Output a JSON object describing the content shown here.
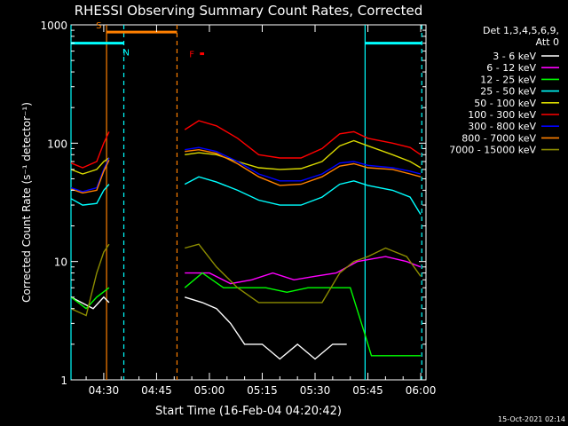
{
  "chart_data": {
    "type": "line",
    "title": "RHESSI Observing Summary Count Rates, Corrected",
    "xlabel": "Start Time (16-Feb-04 04:20:42)",
    "ylabel": "Corrected Count Rate (s⁻¹ detector⁻¹)",
    "x_ticks": [
      "04:30",
      "04:45",
      "05:00",
      "05:15",
      "05:30",
      "05:45",
      "06:00"
    ],
    "x_tick_minutes": [
      30,
      45,
      60,
      75,
      90,
      105,
      120
    ],
    "xlim_minutes": [
      20.7,
      121.5
    ],
    "y_ticks": [
      "1",
      "10",
      "100",
      "1000"
    ],
    "y_tick_values": [
      1,
      10,
      100,
      1000
    ],
    "ylim": [
      1,
      1000
    ],
    "y_scale": "log",
    "legend_header": [
      "Det 1,3,4,5,6,9,",
      "Att 0"
    ],
    "series": [
      {
        "name": "3 - 6 keV",
        "color": "#ffffff",
        "segments": [
          [
            [
              20.7,
              5
            ],
            [
              27,
              4
            ],
            [
              30,
              5
            ],
            [
              31.5,
              4.5
            ]
          ],
          [
            [
              53,
              5
            ],
            [
              58,
              4.5
            ],
            [
              62,
              4
            ],
            [
              66,
              3
            ],
            [
              70,
              2
            ],
            [
              75,
              2
            ],
            [
              80,
              1.5
            ],
            [
              85,
              2
            ],
            [
              90,
              1.5
            ],
            [
              95,
              2
            ],
            [
              99,
              2
            ]
          ]
        ]
      },
      {
        "name": "6 - 12 keV",
        "color": "#ff00ff",
        "segments": [
          [
            [
              53,
              8
            ],
            [
              60,
              8
            ],
            [
              66,
              6.5
            ],
            [
              72,
              7
            ],
            [
              78,
              8
            ],
            [
              84,
              7
            ],
            [
              90,
              7.5
            ],
            [
              96,
              8
            ],
            [
              102,
              10
            ],
            [
              110,
              11
            ],
            [
              116,
              10
            ],
            [
              120,
              9
            ]
          ]
        ]
      },
      {
        "name": "12 - 25 keV",
        "color": "#00ff00",
        "segments": [
          [
            [
              20.7,
              5
            ],
            [
              25,
              4
            ],
            [
              28,
              5
            ],
            [
              31.5,
              6
            ]
          ],
          [
            [
              53,
              6
            ],
            [
              58,
              8
            ],
            [
              64,
              6
            ],
            [
              70,
              6
            ],
            [
              76,
              6
            ],
            [
              82,
              5.5
            ],
            [
              88,
              6
            ],
            [
              94,
              6
            ],
            [
              100,
              6
            ],
            [
              104,
              2.5
            ],
            [
              106,
              1.6
            ],
            [
              120,
              1.6
            ]
          ]
        ]
      },
      {
        "name": "25 - 50 keV",
        "color": "#00ffff",
        "segments": [
          [
            [
              20.7,
              34
            ],
            [
              24,
              30
            ],
            [
              28,
              31
            ],
            [
              30,
              40
            ],
            [
              31.5,
              45
            ]
          ],
          [
            [
              53,
              45
            ],
            [
              57,
              52
            ],
            [
              62,
              47
            ],
            [
              68,
              40
            ],
            [
              74,
              33
            ],
            [
              80,
              30
            ],
            [
              86,
              30
            ],
            [
              92,
              35
            ],
            [
              97,
              45
            ],
            [
              101,
              48
            ],
            [
              105,
              44
            ],
            [
              112,
              40
            ],
            [
              117,
              35
            ],
            [
              120,
              25
            ]
          ]
        ]
      },
      {
        "name": "50 - 100 keV",
        "color": "#d8d800",
        "segments": [
          [
            [
              20.7,
              60
            ],
            [
              24,
              55
            ],
            [
              28,
              60
            ],
            [
              30,
              70
            ],
            [
              31.5,
              75
            ]
          ],
          [
            [
              53,
              80
            ],
            [
              57,
              83
            ],
            [
              62,
              80
            ],
            [
              68,
              70
            ],
            [
              74,
              62
            ],
            [
              80,
              60
            ],
            [
              86,
              61
            ],
            [
              92,
              70
            ],
            [
              97,
              95
            ],
            [
              101,
              105
            ],
            [
              105,
              95
            ],
            [
              112,
              80
            ],
            [
              117,
              70
            ],
            [
              120,
              62
            ]
          ]
        ]
      },
      {
        "name": "100 - 300 keV",
        "color": "#ff0000",
        "segments": [
          [
            [
              20.7,
              68
            ],
            [
              24,
              62
            ],
            [
              28,
              70
            ],
            [
              30,
              100
            ],
            [
              31.5,
              125
            ]
          ],
          [
            [
              53,
              130
            ],
            [
              57,
              155
            ],
            [
              62,
              140
            ],
            [
              68,
              110
            ],
            [
              74,
              80
            ],
            [
              80,
              75
            ],
            [
              86,
              75
            ],
            [
              92,
              90
            ],
            [
              97,
              120
            ],
            [
              101,
              125
            ],
            [
              105,
              110
            ],
            [
              112,
              100
            ],
            [
              117,
              92
            ],
            [
              120,
              80
            ]
          ]
        ]
      },
      {
        "name": "300 - 800 keV",
        "color": "#0000ff",
        "segments": [
          [
            [
              20.7,
              42
            ],
            [
              24,
              39
            ],
            [
              28,
              42
            ],
            [
              30,
              60
            ],
            [
              31.5,
              75
            ]
          ],
          [
            [
              53,
              88
            ],
            [
              57,
              92
            ],
            [
              62,
              85
            ],
            [
              68,
              70
            ],
            [
              74,
              55
            ],
            [
              80,
              48
            ],
            [
              86,
              48
            ],
            [
              92,
              55
            ],
            [
              97,
              68
            ],
            [
              101,
              70
            ],
            [
              105,
              65
            ],
            [
              112,
              62
            ],
            [
              117,
              58
            ],
            [
              120,
              55
            ]
          ]
        ]
      },
      {
        "name": "800 - 7000 keV",
        "color": "#ff8000",
        "segments": [
          [
            [
              20.7,
              41
            ],
            [
              24,
              38
            ],
            [
              28,
              40
            ],
            [
              30,
              58
            ],
            [
              31.5,
              72
            ]
          ],
          [
            [
              53,
              85
            ],
            [
              57,
              88
            ],
            [
              62,
              82
            ],
            [
              68,
              67
            ],
            [
              74,
              52
            ],
            [
              80,
              44
            ],
            [
              86,
              45
            ],
            [
              92,
              52
            ],
            [
              97,
              64
            ],
            [
              101,
              67
            ],
            [
              105,
              62
            ],
            [
              112,
              60
            ],
            [
              117,
              55
            ],
            [
              120,
              52
            ]
          ]
        ]
      },
      {
        "name": "7000 - 15000 keV",
        "color": "#8c8c00",
        "segments": [
          [
            [
              20.7,
              4
            ],
            [
              25,
              3.5
            ],
            [
              28,
              8
            ],
            [
              30,
              12
            ],
            [
              31.5,
              14
            ]
          ],
          [
            [
              53,
              13
            ],
            [
              57,
              14
            ],
            [
              62,
              9
            ],
            [
              68,
              6
            ],
            [
              74,
              4.5
            ],
            [
              80,
              4.5
            ],
            [
              86,
              4.5
            ],
            [
              92,
              4.5
            ],
            [
              97,
              8
            ],
            [
              101,
              10
            ],
            [
              105,
              11
            ],
            [
              110,
              13
            ],
            [
              116,
              11
            ],
            [
              120,
              7.5
            ]
          ]
        ]
      }
    ],
    "flag_bars": [
      {
        "label": "S",
        "color": "#ff8000",
        "x": [
          30.8,
          50.8
        ],
        "level": 870
      },
      {
        "label": "N",
        "color": "#00ffff",
        "x": [
          20.7,
          35.7
        ],
        "level": 700
      },
      {
        "label": "",
        "color": "#00ffff",
        "x": [
          104.2,
          120.3
        ],
        "level": 700
      },
      {
        "label": "F",
        "color": "#ff0000",
        "x": [
          57.3,
          58.5
        ],
        "level": 570
      }
    ],
    "vlines": [
      {
        "x": 20.7,
        "color": "#00ffff",
        "style": "solid"
      },
      {
        "x": 35.7,
        "color": "#00ffff",
        "style": "dashed"
      },
      {
        "x": 30.8,
        "color": "#ff8000",
        "style": "solid"
      },
      {
        "x": 50.8,
        "color": "#ff8000",
        "style": "dashed"
      },
      {
        "x": 104.2,
        "color": "#00ffff",
        "style": "solid"
      },
      {
        "x": 120.3,
        "color": "#00ffff",
        "style": "dashed"
      }
    ]
  },
  "footer": {
    "timestamp": "15-Oct-2021 02:14"
  }
}
